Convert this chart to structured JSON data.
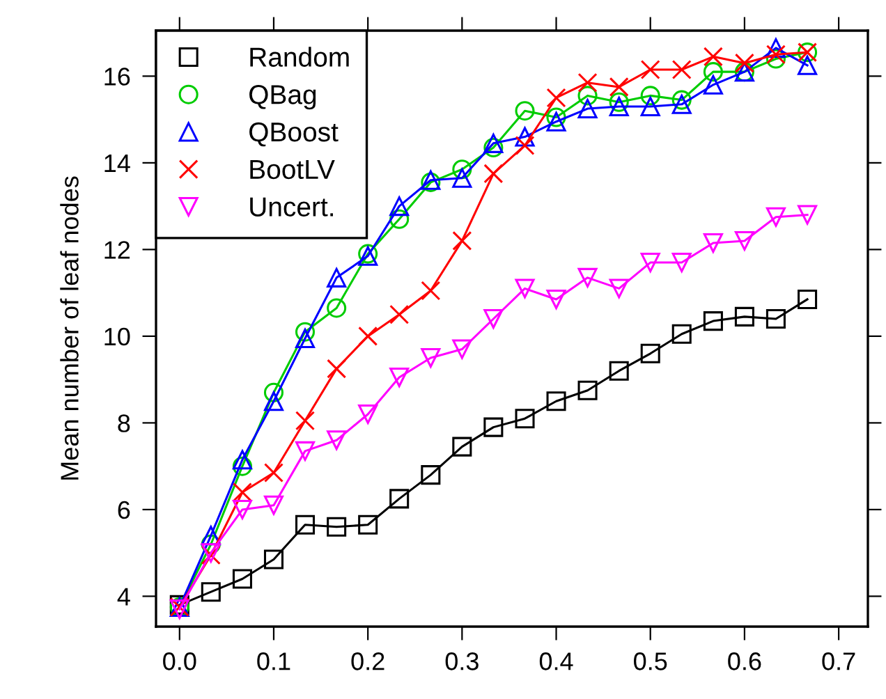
{
  "chart_data": {
    "type": "line",
    "ylabel": "Mean number of leaf nodes",
    "x": [
      0,
      0.0333,
      0.0667,
      0.1,
      0.1333,
      0.1667,
      0.2,
      0.2333,
      0.2667,
      0.3,
      0.3333,
      0.3667,
      0.4,
      0.4333,
      0.4667,
      0.5,
      0.5333,
      0.5667,
      0.6,
      0.6333,
      0.6667
    ],
    "series": [
      {
        "name": "Random",
        "color": "#000000",
        "marker": "square",
        "values": [
          3.8,
          4.1,
          4.4,
          4.85,
          5.65,
          5.6,
          5.65,
          6.25,
          6.8,
          7.45,
          7.9,
          8.1,
          8.5,
          8.75,
          9.2,
          9.6,
          10.05,
          10.35,
          10.45,
          10.4,
          10.85
        ]
      },
      {
        "name": "QBag",
        "color": "#00cc00",
        "marker": "circle",
        "values": [
          3.75,
          5.2,
          7.0,
          8.7,
          10.1,
          10.65,
          11.9,
          12.7,
          13.55,
          13.85,
          14.35,
          15.2,
          15.05,
          15.55,
          15.4,
          15.55,
          15.45,
          16.1,
          16.1,
          16.4,
          16.55
        ]
      },
      {
        "name": "QBoost",
        "color": "#0000ff",
        "marker": "triangle",
        "values": [
          3.75,
          5.4,
          7.15,
          8.5,
          9.95,
          11.35,
          11.85,
          13.0,
          13.6,
          13.65,
          14.45,
          14.6,
          14.95,
          15.25,
          15.3,
          15.3,
          15.35,
          15.8,
          16.1,
          16.65,
          16.25
        ]
      },
      {
        "name": "BootLV",
        "color": "#ff0000",
        "marker": "cross",
        "values": [
          3.75,
          4.95,
          6.4,
          6.85,
          8.05,
          9.25,
          10.0,
          10.5,
          11.05,
          12.2,
          13.75,
          14.4,
          15.5,
          15.85,
          15.75,
          16.15,
          16.15,
          16.45,
          16.3,
          16.5,
          16.55
        ]
      },
      {
        "name": "Uncert.",
        "color": "#ff00ff",
        "marker": "triangle_down",
        "values": [
          3.7,
          5.0,
          6.0,
          6.1,
          7.35,
          7.6,
          8.2,
          9.05,
          9.5,
          9.7,
          10.4,
          11.1,
          10.85,
          11.35,
          11.1,
          11.7,
          11.7,
          12.15,
          12.2,
          12.75,
          12.8
        ]
      }
    ],
    "xlim": [
      -0.025,
      0.731
    ],
    "xticks": [
      {
        "value": 0,
        "label": "0.0"
      },
      0.1,
      0.2,
      0.3,
      0.4,
      0.5,
      0.6,
      0.7
    ],
    "ylim": [
      3.3,
      17.05
    ],
    "yticks": [
      4,
      6,
      8,
      10,
      12,
      14,
      16
    ],
    "grid": false,
    "legend": "top left",
    "line_style": "solid"
  }
}
